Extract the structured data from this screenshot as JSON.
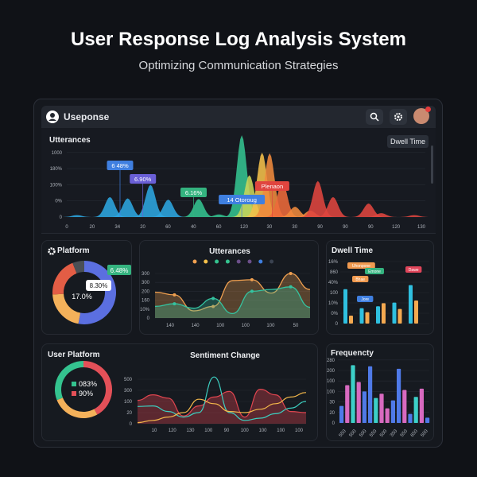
{
  "page": {
    "title": "User Response Log Analysis System",
    "subtitle": "Optimizing Communication Strategies"
  },
  "header": {
    "app_name": "Useponse",
    "icons": [
      "user-icon",
      "search-icon",
      "settings-icon",
      "avatar"
    ],
    "notification_badge": true
  },
  "top_chart": {
    "title": "Utterances",
    "button": "Dwell Time"
  },
  "platform": {
    "title": "Platform"
  },
  "utterances_panel": {
    "title": "Utterances"
  },
  "dwell_panel": {
    "title": "Dwell Time"
  },
  "user_platform": {
    "title": "User Platform"
  },
  "sentiment": {
    "title": "Sentiment Change"
  },
  "frequency": {
    "title": "Frequencty"
  },
  "chart_data": [
    {
      "id": "top",
      "type": "area",
      "title": "Utterances",
      "x_ticks": [
        "0",
        "20",
        "34",
        "20",
        "60",
        "40",
        "60",
        "120",
        "30",
        "30",
        "90",
        "90",
        "90",
        "120",
        "130"
      ],
      "y_ticks": [
        "0",
        "0%",
        "100%",
        "180%",
        "1000"
      ],
      "peaks": [
        [
          0.4,
          0.03,
          "#2ea6e0"
        ],
        [
          1.7,
          0.31,
          "#2ea6e0"
        ],
        [
          2.4,
          0.29,
          "#2ea6e0"
        ],
        [
          3.3,
          0.5,
          "#2ea6e0"
        ],
        [
          4.0,
          0.27,
          "#2ea6e0"
        ],
        [
          5.2,
          0.28,
          "#34c38f"
        ],
        [
          6.0,
          0.04,
          "#34c38f"
        ],
        [
          6.9,
          1.27,
          "#34c38f"
        ],
        [
          7.2,
          0.65,
          "#c9d65a"
        ],
        [
          7.7,
          1.0,
          "#f5c04a"
        ],
        [
          8.0,
          0.99,
          "#f08a3c"
        ],
        [
          8.5,
          0.55,
          "#ee6a3a"
        ],
        [
          9.0,
          0.16,
          "#f08a3c"
        ],
        [
          9.6,
          0.1,
          "#f08a3c"
        ],
        [
          9.9,
          0.56,
          "#e0453f"
        ],
        [
          10.5,
          0.31,
          "#e0453f"
        ],
        [
          11.9,
          0.21,
          "#e0453f"
        ],
        [
          12.4,
          0.06,
          "#e0453f"
        ],
        [
          13.7,
          0.03,
          "#e0453f"
        ]
      ],
      "annotations": [
        {
          "text": "6 48%",
          "color": "#3f7fe0",
          "at": 2.1
        },
        {
          "text": "6.90%",
          "color": "#6a5fd6",
          "at": 3.0
        },
        {
          "text": "6.16%",
          "color": "#34b37f",
          "at": 5.0
        },
        {
          "text": "14 Otoroug",
          "color": "#3f7fe0",
          "at": 6.9
        },
        {
          "text": "Plenaon",
          "color": "#e0453f",
          "at": 8.1
        }
      ]
    },
    {
      "id": "platform",
      "type": "pie",
      "slices": [
        {
          "value": 53,
          "color": "#5b6fe0"
        },
        {
          "value": 21,
          "color": "#f4b15a"
        },
        {
          "value": 20,
          "color": "#e35d45"
        },
        {
          "value": 6,
          "color": "#4a4f55"
        }
      ],
      "labels": [
        "6.48%",
        "8.30%",
        "17.0%"
      ]
    },
    {
      "id": "utterances",
      "type": "line",
      "title": "Utterances",
      "y_ticks": [
        "0",
        "10%",
        "160",
        "200",
        "300",
        "300"
      ],
      "x_ticks": [
        "140",
        "140",
        "100",
        "100",
        "100",
        "50"
      ],
      "legend_colors": [
        "#f0a050",
        "#f5c04a",
        "#34c38f",
        "#34c38f",
        "#6c4f8a",
        "#6c4f8a",
        "#3f7fe0",
        "#3a4250"
      ],
      "series": [
        {
          "color": "#f0a050",
          "values": [
            2.9,
            2.6,
            0.8,
            1.3,
            4.2,
            4.3,
            2.8,
            5.0,
            3.2
          ]
        },
        {
          "color": "#34c3a0",
          "values": [
            1.3,
            1.6,
            1.1,
            2.2,
            0.5,
            3.0,
            3.2,
            3.5,
            1.2
          ]
        }
      ]
    },
    {
      "id": "dwell",
      "type": "bar",
      "title": "Dwell Time",
      "y_ticks": [
        "0",
        "0%",
        "10%",
        "100",
        "40%",
        "860",
        "16%"
      ],
      "series": [
        {
          "color": "#2fc0e0",
          "values": [
            3.33,
            1.49,
            1.67,
            2.03,
            3.72
          ]
        },
        {
          "color": "#f4a950",
          "values": [
            0.77,
            1.1,
            1.97,
            1.41,
            2.23
          ]
        }
      ],
      "callouts": [
        {
          "text": "Uhonpone",
          "color": "#f09a50"
        },
        {
          "text": "Emone",
          "color": "#34b37f"
        },
        {
          "text": "Dawe",
          "color": "#e0455a"
        },
        {
          "text": "Bhae",
          "color": "#f09a50"
        },
        {
          "text": "Jore",
          "color": "#3f7fe0"
        }
      ]
    },
    {
      "id": "user_platform",
      "type": "pie",
      "slices": [
        {
          "value": 42,
          "color": "#e35058"
        },
        {
          "value": 27,
          "color": "#f4b15a"
        },
        {
          "value": 31,
          "color": "#34c38f"
        }
      ],
      "legend": [
        {
          "label": "083%",
          "color": "#34c38f"
        },
        {
          "label": "90%",
          "color": "#e35058"
        }
      ]
    },
    {
      "id": "sentiment",
      "type": "line",
      "title": "Sentiment Change",
      "y_ticks": [
        "0",
        "20",
        "100",
        "300",
        "500"
      ],
      "x_ticks": [
        "10",
        "120",
        "130",
        "100",
        "90",
        "100",
        "100",
        "100",
        "100"
      ],
      "series": [
        {
          "color": "#e0454f",
          "area": true,
          "values": [
            2.1,
            2.6,
            2.3,
            0.7,
            1.6,
            2.4,
            2.9,
            0.6,
            3.1,
            2.6,
            1.1,
            1.0
          ]
        },
        {
          "color": "#3ccfc0",
          "values": [
            1.55,
            1.6,
            1.1,
            0.6,
            1.0,
            4.2,
            1.0,
            0.3,
            0.5,
            0.9,
            1.4,
            2.0
          ]
        },
        {
          "color": "#f4b84a",
          "values": [
            0.1,
            0.3,
            0.6,
            1.0,
            2.2,
            1.8,
            1.1,
            1.0,
            1.3,
            1.8,
            2.4,
            2.8
          ]
        }
      ]
    },
    {
      "id": "frequency",
      "type": "bar",
      "title": "Frequencty",
      "y_ticks": [
        "0",
        "20",
        "30",
        "100",
        "100",
        "200",
        "280"
      ],
      "x_ticks": [
        "550",
        "500",
        "500",
        "550",
        "500",
        "350",
        "550",
        "650",
        "500"
      ],
      "bars": [
        [
          1.62,
          "#4f7ae8"
        ],
        [
          3.6,
          "#d86ac0"
        ],
        [
          5.5,
          "#3cd0c8"
        ],
        [
          3.9,
          "#d86ac0"
        ],
        [
          3.0,
          "#4f7ae8"
        ],
        [
          5.4,
          "#4f7ae8"
        ],
        [
          2.38,
          "#3cd0c8"
        ],
        [
          2.78,
          "#d86ac0"
        ],
        [
          1.39,
          "#d86ac0"
        ],
        [
          2.15,
          "#4f7ae8"
        ],
        [
          5.16,
          "#4f7ae8"
        ],
        [
          3.14,
          "#d86ac0"
        ],
        [
          0.86,
          "#4f7ae8"
        ],
        [
          2.48,
          "#3cd0c8"
        ],
        [
          3.27,
          "#d86ac0"
        ],
        [
          0.5,
          "#4f7ae8"
        ]
      ]
    }
  ]
}
